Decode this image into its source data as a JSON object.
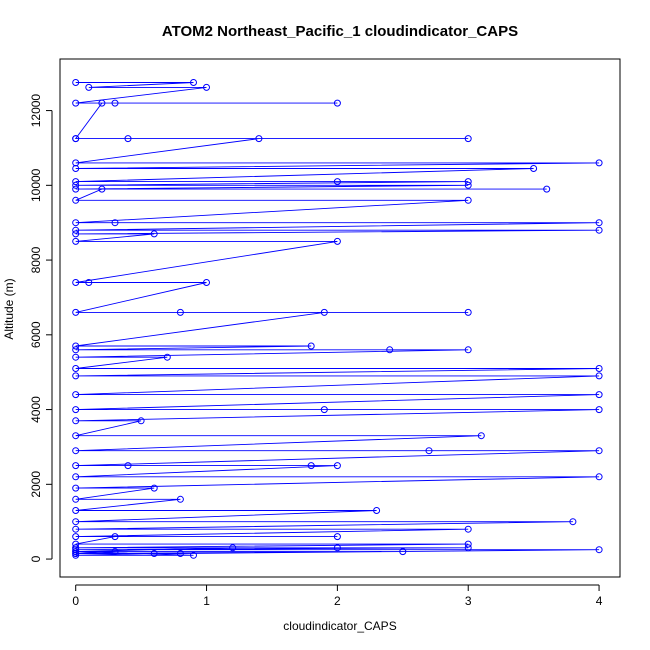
{
  "chart_data": {
    "type": "line",
    "title": "ATOM2 Northeast_Pacific_1 cloudindicator_CAPS",
    "xlabel": "cloudindicator_CAPS",
    "ylabel": "Altitude (m)",
    "xlim": [
      -0.12,
      4.16
    ],
    "ylim": [
      -480,
      13380
    ],
    "x_ticks": [
      0,
      1,
      2,
      3,
      4
    ],
    "y_ticks": [
      0,
      2000,
      4000,
      6000,
      8000,
      10000,
      12000
    ],
    "grid": false,
    "legend": "none",
    "color": "#0000ff",
    "series": [
      {
        "x": [
          0,
          0.9,
          0.1,
          1.0,
          0,
          0.3,
          2.0,
          0.2,
          0,
          3.0,
          0,
          0.4,
          1.4,
          0,
          4.0,
          0,
          3.5,
          0,
          2.0,
          3.0,
          0,
          3.0,
          0,
          3.6,
          0.2,
          0,
          3.0,
          0,
          0.3,
          4.0,
          0,
          4.0,
          0,
          0.6,
          0,
          2.0,
          0,
          0.1,
          1.0,
          0,
          3.0,
          0.8,
          1.9,
          0,
          1.8,
          0,
          2.4,
          3.0,
          0,
          0.7,
          0,
          4.0,
          0,
          4.0,
          0,
          4.0,
          0,
          1.9,
          4.0,
          0,
          0.5,
          0,
          3.1,
          0,
          2.7,
          4.0,
          0,
          0.4,
          1.8,
          2.0,
          0,
          4.0,
          0,
          0.6,
          0,
          0.8,
          0,
          2.3,
          0,
          3.8,
          0,
          3.0,
          0,
          2.0,
          0.3,
          0,
          3.0,
          0,
          1.2,
          0,
          0.3,
          0,
          0.6,
          0,
          0.9,
          0,
          2.5,
          0,
          0.8,
          4.0,
          0,
          3.0,
          0,
          2.0
        ],
        "y": [
          12750,
          12750,
          12620,
          12620,
          12200,
          12200,
          12200,
          12200,
          11250,
          11250,
          11250,
          11250,
          11250,
          10600,
          10600,
          10450,
          10450,
          10100,
          10100,
          10100,
          10000,
          10000,
          9900,
          9900,
          9900,
          9600,
          9600,
          9000,
          9000,
          9000,
          8800,
          8800,
          8700,
          8700,
          8500,
          8500,
          7400,
          7400,
          7400,
          6600,
          6600,
          6600,
          6600,
          5700,
          5700,
          5600,
          5600,
          5600,
          5400,
          5400,
          5100,
          5100,
          4900,
          4900,
          4400,
          4400,
          4000,
          4000,
          4000,
          3700,
          3700,
          3300,
          3300,
          2900,
          2900,
          2900,
          2500,
          2500,
          2500,
          2500,
          2200,
          2200,
          1900,
          1900,
          1600,
          1600,
          1300,
          1300,
          1000,
          1000,
          800,
          800,
          600,
          600,
          600,
          400,
          400,
          300,
          300,
          200,
          200,
          150,
          150,
          100,
          100,
          200,
          200,
          150,
          150,
          250,
          250,
          300,
          300,
          300
        ]
      }
    ]
  }
}
